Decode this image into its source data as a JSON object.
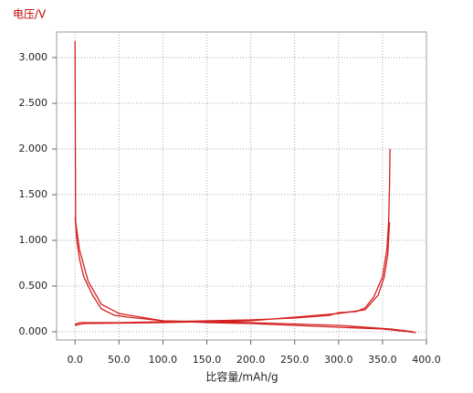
{
  "chart_data": {
    "type": "line",
    "y_label": "电压/V",
    "x_label": "比容量/mAh/g",
    "xlim": [
      -21,
      400
    ],
    "ylim": [
      -0.09,
      3.28
    ],
    "xticks": [
      {
        "value": 0,
        "label": "0.0"
      },
      {
        "value": 50,
        "label": "50.0"
      },
      {
        "value": 100,
        "label": "100.0"
      },
      {
        "value": 150,
        "label": "150.0"
      },
      {
        "value": 200,
        "label": "200.0"
      },
      {
        "value": 250,
        "label": "250.0"
      },
      {
        "value": 300,
        "label": "300.0"
      },
      {
        "value": 350,
        "label": "350.0"
      },
      {
        "value": 400,
        "label": "400.0"
      }
    ],
    "yticks": [
      {
        "value": 0,
        "label": "0.000"
      },
      {
        "value": 0.5,
        "label": "0.500"
      },
      {
        "value": 1,
        "label": "1.000"
      },
      {
        "value": 1.5,
        "label": "1.500"
      },
      {
        "value": 2,
        "label": "2.000"
      },
      {
        "value": 2.5,
        "label": "2.500"
      },
      {
        "value": 3,
        "label": "3.000"
      }
    ],
    "grid": true,
    "series": [
      {
        "color": "#d42020",
        "x": [
          0,
          0.3,
          0.6,
          2,
          5,
          10,
          20,
          30,
          45,
          60,
          100,
          150,
          200,
          250,
          300,
          350,
          380,
          388
        ],
        "values": [
          3.18,
          2.2,
          1.2,
          1.0,
          0.8,
          0.6,
          0.4,
          0.25,
          0.18,
          0.16,
          0.12,
          0.1,
          0.09,
          0.07,
          0.05,
          0.03,
          0.0,
          -0.01
        ]
      },
      {
        "color": "#d42020",
        "x": [
          0,
          5,
          50,
          100,
          150,
          200,
          250,
          290,
          300,
          320,
          330,
          340,
          350,
          355,
          357,
          358,
          358.5
        ],
        "values": [
          0.08,
          0.1,
          0.1,
          0.11,
          0.12,
          0.13,
          0.15,
          0.18,
          0.21,
          0.22,
          0.26,
          0.38,
          0.6,
          0.9,
          1.2,
          1.6,
          2.0
        ]
      },
      {
        "color": "#d42020",
        "x": [
          0,
          5,
          15,
          30,
          50,
          100,
          200,
          300,
          360,
          385
        ],
        "values": [
          1.25,
          0.9,
          0.55,
          0.3,
          0.2,
          0.12,
          0.1,
          0.07,
          0.03,
          0.0
        ]
      },
      {
        "color": "#d42020",
        "x": [
          0,
          10,
          100,
          200,
          300,
          330,
          345,
          352,
          356,
          358
        ],
        "values": [
          0.07,
          0.09,
          0.1,
          0.12,
          0.2,
          0.24,
          0.4,
          0.6,
          0.85,
          1.2
        ]
      }
    ]
  }
}
